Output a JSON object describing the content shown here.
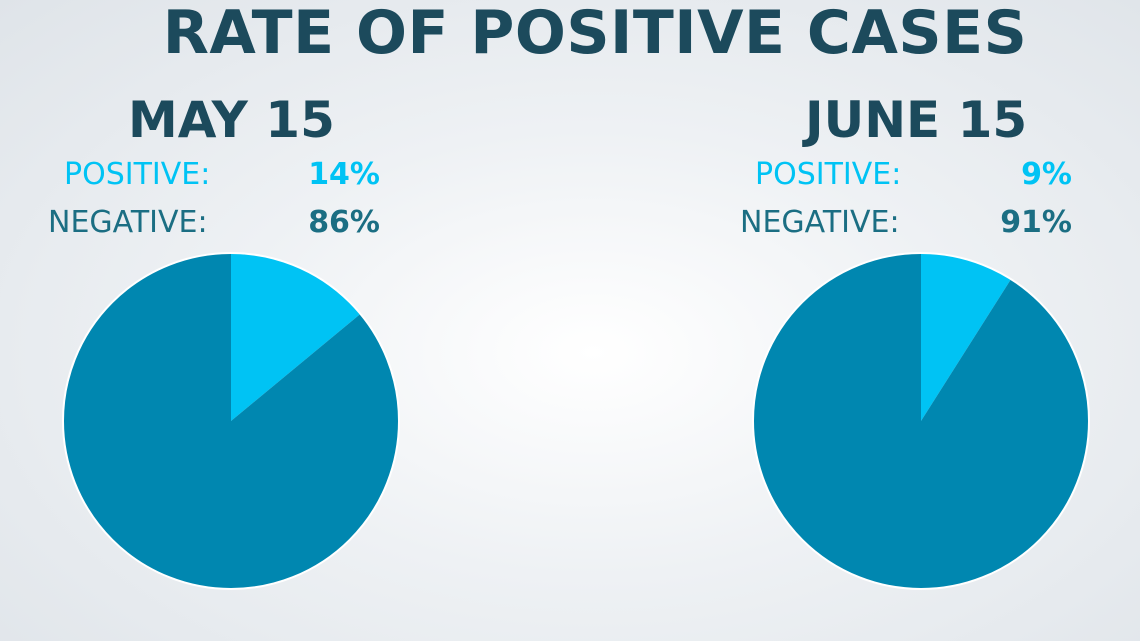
{
  "title": "RATE OF POSITIVE CASES",
  "colors": {
    "title": "#1c4a5c",
    "positive": "#00c3f4",
    "negative": "#0087b0",
    "negative_text": "#1b6e83",
    "pie_border": "#ffffff"
  },
  "chart_data": [
    {
      "type": "pie",
      "title": "MAY 15",
      "categories": [
        "POSITIVE:",
        "NEGATIVE:"
      ],
      "values": [
        14,
        86
      ],
      "value_labels": [
        "14%",
        "86%"
      ],
      "unit": "%"
    },
    {
      "type": "pie",
      "title": "JUNE 15",
      "categories": [
        "POSITIVE:",
        "NEGATIVE:"
      ],
      "values": [
        9,
        91
      ],
      "value_labels": [
        "9%",
        "91%"
      ],
      "unit": "%"
    }
  ]
}
